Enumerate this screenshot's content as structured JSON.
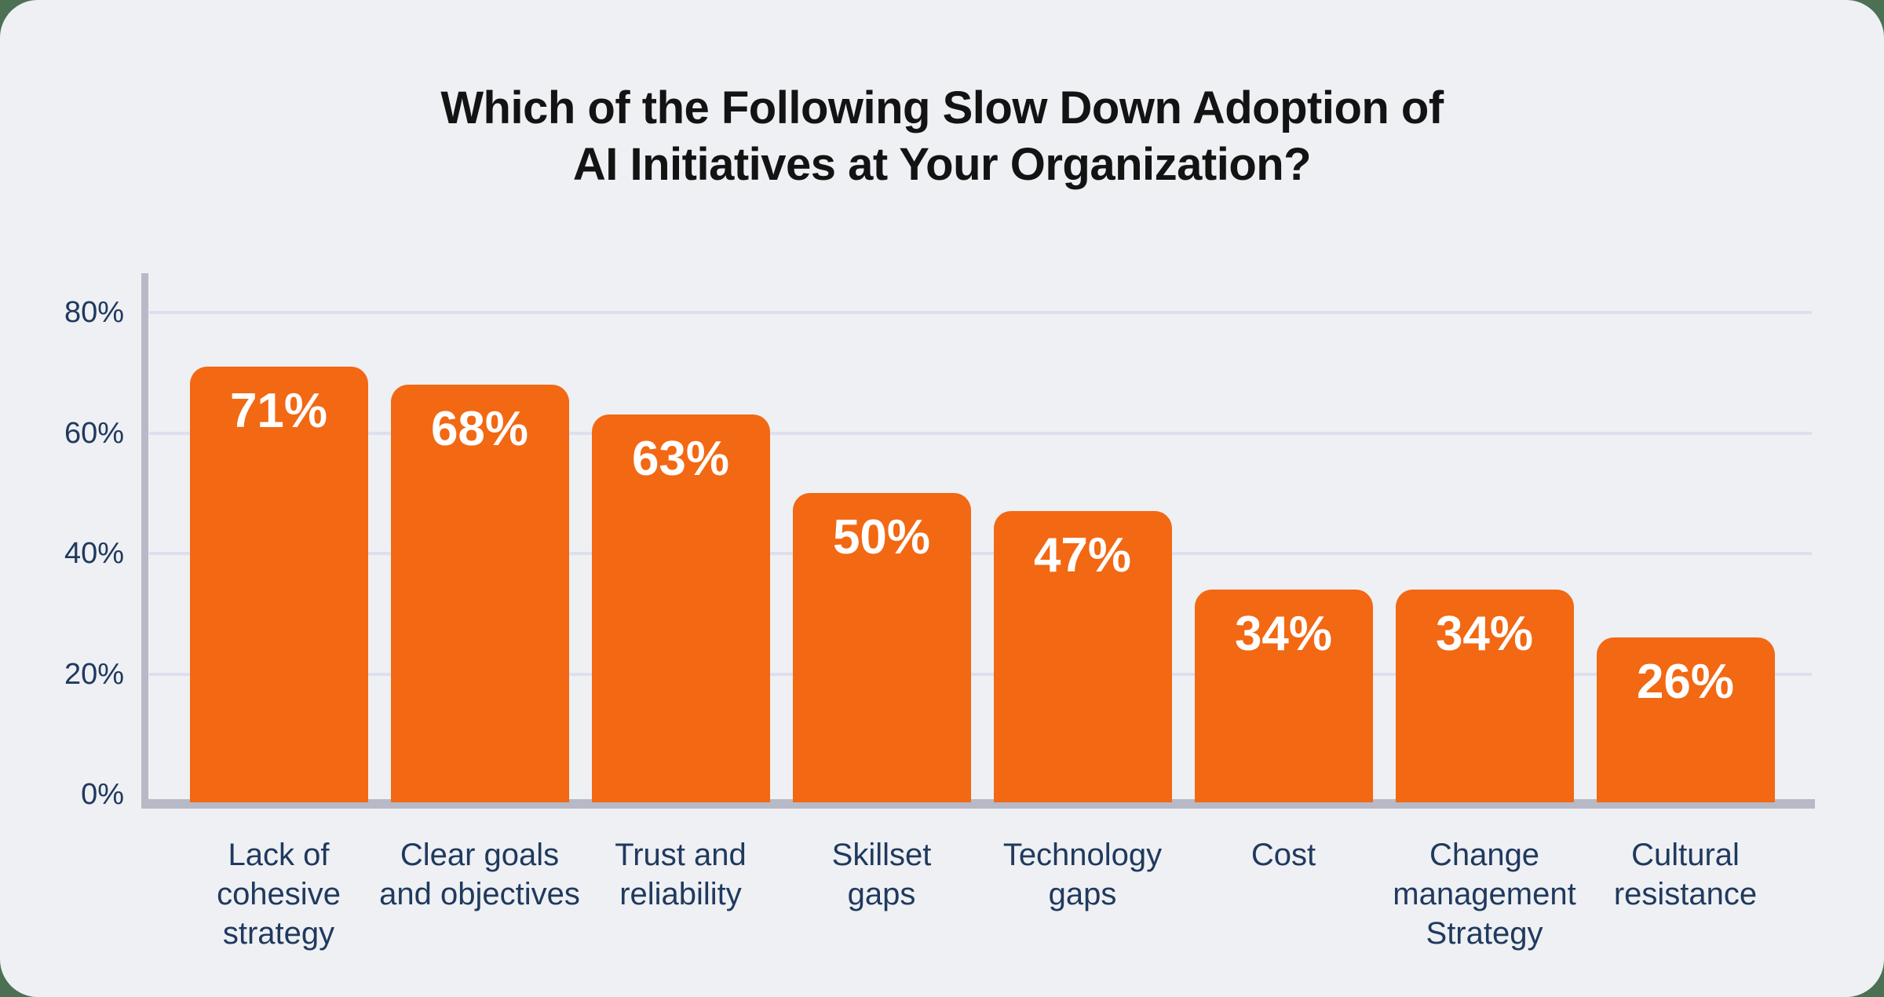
{
  "title": {
    "lines": [
      "Which of the Following Slow Down Adoption of",
      "AI Initiatives at Your Organization?"
    ]
  },
  "chart_data": {
    "type": "bar",
    "title": "Which of the Following Slow Down Adoption of AI Initiatives at Your Organization?",
    "categories": [
      "Lack of cohesive strategy",
      "Clear goals and objectives",
      "Trust and reliability",
      "Skillset gaps",
      "Technology gaps",
      "Cost",
      "Change management Strategy",
      "Cultural resistance"
    ],
    "category_labels": [
      "Lack of\ncohesive\nstrategy",
      "Clear goals\nand objectives",
      "Trust and\nreliability",
      "Skillset\ngaps",
      "Technology\ngaps",
      "Cost",
      "Change\nmanagement\nStrategy",
      "Cultural\nresistance"
    ],
    "values": [
      71,
      68,
      63,
      50,
      47,
      34,
      34,
      26
    ],
    "value_labels": [
      "71%",
      "68%",
      "63%",
      "50%",
      "47%",
      "34%",
      "34%",
      "26%"
    ],
    "xlabel": "",
    "ylabel": "",
    "ylim": [
      0,
      85
    ],
    "yticks": [
      80,
      60,
      40,
      20,
      0
    ],
    "ytick_labels": [
      "80%",
      "60%",
      "40%",
      "20%",
      "0%"
    ],
    "grid": true,
    "legend": "none",
    "colors": {
      "bar": "#F26813",
      "bar_value_text": "#FFFFFF",
      "axis_line": "#B7B9C6",
      "gridline": "#DEDFEE",
      "tick_text": "#20395E",
      "title_text": "#131313",
      "card_background": "#EEF0F3",
      "page_background": "#4B7053"
    }
  }
}
